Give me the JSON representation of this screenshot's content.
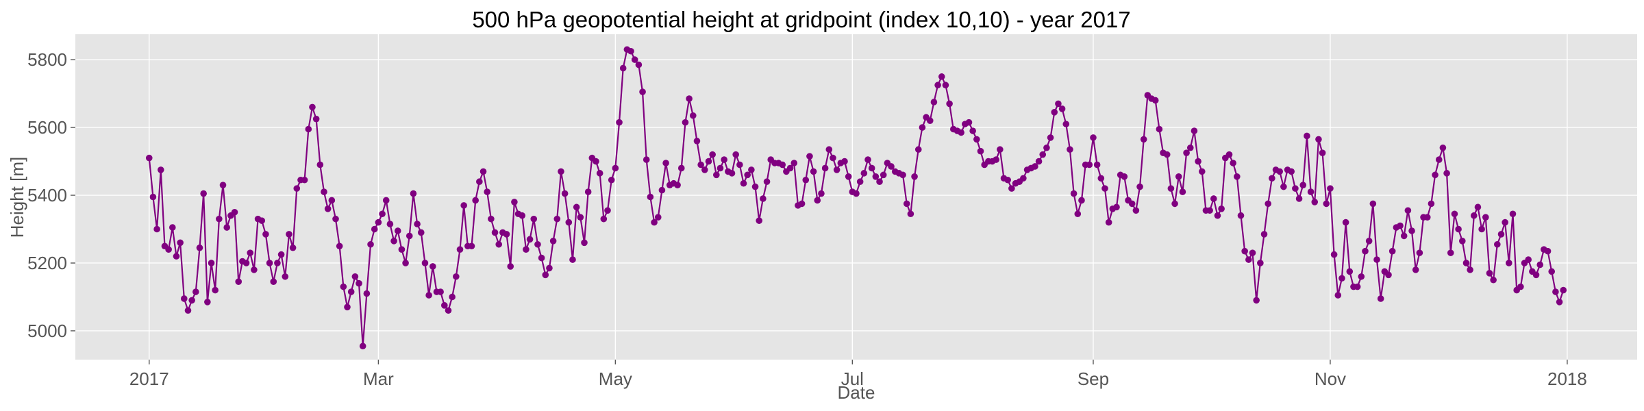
{
  "chart_data": {
    "type": "line",
    "title": "500 hPa geopotential height at gridpoint (index 10,10) - year 2017",
    "xlabel": "Date",
    "ylabel": "Height [m]",
    "x_ticks": [
      "2017",
      "Mar",
      "May",
      "Jul",
      "Sep",
      "Nov",
      "2018"
    ],
    "x_tick_dates": [
      "2017-01-01",
      "2017-03-01",
      "2017-05-01",
      "2017-07-01",
      "2017-09-01",
      "2017-11-01",
      "2018-01-01"
    ],
    "y_ticks": [
      5000,
      5200,
      5400,
      5600,
      5800
    ],
    "xlim": [
      "2016-12-13",
      "2018-01-19"
    ],
    "ylim": [
      4915,
      5875
    ],
    "grid": true,
    "colors": {
      "line": "#800080",
      "panel": "#e5e5e5",
      "grid": "#ffffff"
    },
    "series": [
      {
        "start_date": "2017-01-01",
        "values": [
          5510,
          5395,
          5300,
          5475,
          5250,
          5240,
          5305,
          5220,
          5260,
          5095,
          5060,
          5090,
          5115,
          5245,
          5405,
          5085,
          5200,
          5120,
          5330,
          5430,
          5305,
          5340,
          5350,
          5145,
          5205,
          5200,
          5230,
          5180,
          5330,
          5325,
          5285,
          5200,
          5145,
          5200,
          5225,
          5160,
          5285,
          5245,
          5420,
          5445,
          5445,
          5595,
          5660,
          5625,
          5490,
          5410,
          5360,
          5385,
          5330,
          5250,
          5130,
          5070,
          5115,
          5160,
          5140,
          4955,
          5110,
          5255,
          5300,
          5320,
          5345,
          5385,
          5315,
          5265,
          5295,
          5240,
          5200,
          5280,
          5405,
          5315,
          5290,
          5200,
          5105,
          5190,
          5115,
          5115,
          5075,
          5060,
          5100,
          5160,
          5240,
          5370,
          5250,
          5250,
          5385,
          5440,
          5470,
          5410,
          5330,
          5290,
          5255,
          5290,
          5285,
          5190,
          5380,
          5345,
          5340,
          5240,
          5270,
          5330,
          5255,
          5215,
          5165,
          5185,
          5265,
          5330,
          5470,
          5405,
          5320,
          5210,
          5365,
          5335,
          5260,
          5410,
          5510,
          5500,
          5465,
          5330,
          5355,
          5445,
          5480,
          5615,
          5775,
          5830,
          5825,
          5800,
          5785,
          5705,
          5505,
          5395,
          5320,
          5335,
          5415,
          5495,
          5430,
          5435,
          5430,
          5480,
          5615,
          5685,
          5635,
          5560,
          5490,
          5475,
          5500,
          5520,
          5460,
          5480,
          5505,
          5470,
          5465,
          5520,
          5490,
          5435,
          5460,
          5475,
          5425,
          5325,
          5390,
          5440,
          5505,
          5495,
          5495,
          5490,
          5470,
          5480,
          5495,
          5370,
          5375,
          5445,
          5515,
          5470,
          5385,
          5405,
          5480,
          5535,
          5510,
          5475,
          5495,
          5500,
          5455,
          5410,
          5405,
          5440,
          5465,
          5505,
          5480,
          5455,
          5440,
          5460,
          5495,
          5485,
          5470,
          5465,
          5460,
          5375,
          5345,
          5455,
          5535,
          5600,
          5630,
          5620,
          5675,
          5725,
          5750,
          5725,
          5670,
          5595,
          5590,
          5585,
          5610,
          5615,
          5590,
          5565,
          5530,
          5490,
          5500,
          5500,
          5505,
          5535,
          5450,
          5445,
          5420,
          5435,
          5440,
          5450,
          5475,
          5480,
          5485,
          5500,
          5520,
          5540,
          5570,
          5645,
          5670,
          5655,
          5610,
          5535,
          5405,
          5345,
          5385,
          5490,
          5490,
          5570,
          5490,
          5450,
          5420,
          5320,
          5360,
          5365,
          5460,
          5455,
          5385,
          5375,
          5355,
          5425,
          5565,
          5695,
          5685,
          5680,
          5595,
          5525,
          5520,
          5420,
          5375,
          5455,
          5410,
          5525,
          5540,
          5590,
          5500,
          5470,
          5355,
          5355,
          5390,
          5340,
          5360,
          5510,
          5520,
          5495,
          5455,
          5340,
          5235,
          5210,
          5230,
          5090,
          5200,
          5285,
          5375,
          5450,
          5475,
          5470,
          5425,
          5475,
          5470,
          5420,
          5390,
          5430,
          5575,
          5410,
          5380,
          5565,
          5525,
          5375,
          5420,
          5225,
          5105,
          5155,
          5320,
          5175,
          5130,
          5130,
          5160,
          5235,
          5265,
          5375,
          5210,
          5095,
          5175,
          5165,
          5235,
          5305,
          5310,
          5280,
          5355,
          5295,
          5180,
          5230,
          5335,
          5335,
          5375,
          5460,
          5505,
          5540,
          5465,
          5230,
          5345,
          5300,
          5265,
          5200,
          5180,
          5340,
          5365,
          5300,
          5335,
          5170,
          5150,
          5255,
          5285,
          5320,
          5200,
          5345,
          5120,
          5130,
          5200,
          5210,
          5175,
          5165,
          5195,
          5240,
          5235,
          5175,
          5115,
          5085,
          5120
        ]
      }
    ]
  }
}
